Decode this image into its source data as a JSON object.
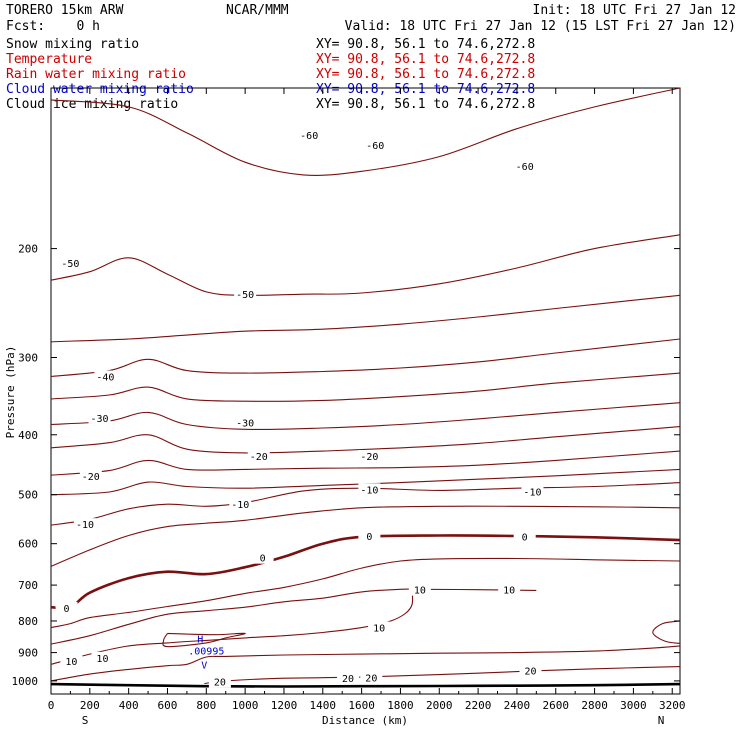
{
  "header": {
    "model": "TORERO  15km ARW",
    "center": "NCAR/MMM",
    "init": "Init: 18 UTC Fri 27 Jan 12",
    "fcst": "Fcst:    0 h",
    "valid": "Valid: 18 UTC Fri 27 Jan 12 (15 LST Fri 27 Jan 12)",
    "fields": [
      {
        "name": "Snow mixing ratio",
        "xy": "XY=  90.8, 56.1 to  74.6,272.8",
        "color": "#000000"
      },
      {
        "name": "Temperature",
        "xy": "XY=  90.8, 56.1 to  74.6,272.8",
        "color": "#cc0000"
      },
      {
        "name": "Rain water mixing ratio",
        "xy": "XY=  90.8, 56.1 to  74.6,272.8",
        "color": "#cc0000"
      },
      {
        "name": "Cloud water mixing ratio",
        "xy": "XY=  90.8, 56.1 to  74.6,272.8",
        "color": "#0000cc"
      },
      {
        "name": "Cloud ice mixing ratio",
        "xy": "XY=  90.8, 56.1 to  74.6,272.8",
        "color": "#000000"
      }
    ]
  },
  "colors": {
    "contour": "#7a1010",
    "zero_contour": "#7a1010",
    "ground": "#000000",
    "cloud_water": "#0000cc",
    "axis": "#000000"
  },
  "chart_data": {
    "type": "contour",
    "xlabel": "Distance (km)",
    "ylabel": "Pressure (hPa)",
    "x_ticks": [
      0,
      200,
      400,
      600,
      800,
      1000,
      1200,
      1400,
      1600,
      1800,
      2000,
      2200,
      2400,
      2600,
      2800,
      3000,
      3200
    ],
    "y_ticks": [
      200,
      300,
      400,
      500,
      600,
      700,
      800,
      900,
      1000
    ],
    "xlim": [
      0,
      3240
    ],
    "ylim": [
      1050,
      110
    ],
    "y_scale": "log",
    "x_end_labels": {
      "left": "S",
      "right": "N"
    },
    "temperature_contours": [
      {
        "level": -60,
        "points": [
          [
            0,
            115
          ],
          [
            400,
            118
          ],
          [
            700,
            130
          ],
          [
            1000,
            145
          ],
          [
            1300,
            152
          ],
          [
            1600,
            150
          ],
          [
            2000,
            142
          ],
          [
            2400,
            128
          ],
          [
            2800,
            118
          ],
          [
            3240,
            110
          ]
        ],
        "labels": [
          [
            1330,
            131,
            "-60"
          ],
          [
            1670,
            136,
            "-60"
          ],
          [
            2440,
            147,
            "-60"
          ]
        ]
      },
      {
        "level": -50,
        "points": [
          [
            0,
            225
          ],
          [
            200,
            218
          ],
          [
            400,
            207
          ],
          [
            600,
            220
          ],
          [
            800,
            235
          ],
          [
            1000,
            238
          ],
          [
            1300,
            237
          ],
          [
            1600,
            236
          ],
          [
            2000,
            228
          ],
          [
            2400,
            215
          ],
          [
            2800,
            200
          ],
          [
            3240,
            190
          ]
        ],
        "labels": [
          [
            100,
            211,
            "-50"
          ],
          [
            1000,
            237,
            "-50"
          ]
        ]
      },
      {
        "level": -45,
        "points": [
          [
            0,
            283
          ],
          [
            400,
            280
          ],
          [
            700,
            276
          ],
          [
            1000,
            272
          ],
          [
            1400,
            270
          ],
          [
            1800,
            265
          ],
          [
            2200,
            258
          ],
          [
            2600,
            250
          ],
          [
            3240,
            238
          ]
        ],
        "labels": []
      },
      {
        "level": -40,
        "points": [
          [
            0,
            322
          ],
          [
            300,
            315
          ],
          [
            500,
            302
          ],
          [
            700,
            315
          ],
          [
            1000,
            318
          ],
          [
            1400,
            316
          ],
          [
            1800,
            312
          ],
          [
            2200,
            305
          ],
          [
            2600,
            295
          ],
          [
            3240,
            280
          ]
        ],
        "labels": [
          [
            280,
            322,
            "-40"
          ]
        ]
      },
      {
        "level": -35,
        "points": [
          [
            0,
            350
          ],
          [
            300,
            345
          ],
          [
            500,
            335
          ],
          [
            700,
            350
          ],
          [
            1000,
            353
          ],
          [
            1400,
            352
          ],
          [
            1800,
            347
          ],
          [
            2200,
            340
          ],
          [
            2600,
            330
          ],
          [
            3240,
            318
          ]
        ],
        "labels": []
      },
      {
        "level": -30,
        "points": [
          [
            0,
            385
          ],
          [
            300,
            380
          ],
          [
            500,
            368
          ],
          [
            700,
            385
          ],
          [
            1000,
            392
          ],
          [
            1400,
            390
          ],
          [
            1800,
            385
          ],
          [
            2200,
            377
          ],
          [
            2600,
            368
          ],
          [
            3240,
            355
          ]
        ],
        "labels": [
          [
            250,
            376,
            "-30"
          ],
          [
            1000,
            382,
            "-30"
          ]
        ]
      },
      {
        "level": -25,
        "points": [
          [
            0,
            420
          ],
          [
            300,
            412
          ],
          [
            500,
            400
          ],
          [
            700,
            422
          ],
          [
            1000,
            428
          ],
          [
            1400,
            425
          ],
          [
            1800,
            420
          ],
          [
            2200,
            413
          ],
          [
            2600,
            403
          ],
          [
            3240,
            388
          ]
        ],
        "labels": []
      },
      {
        "level": -20,
        "points": [
          [
            0,
            465
          ],
          [
            300,
            457
          ],
          [
            500,
            440
          ],
          [
            700,
            455
          ],
          [
            1000,
            455
          ],
          [
            1400,
            453
          ],
          [
            1800,
            452
          ],
          [
            2200,
            448
          ],
          [
            2600,
            440
          ],
          [
            3240,
            425
          ]
        ],
        "labels": [
          [
            205,
            466,
            "-20"
          ],
          [
            1070,
            433,
            "-20"
          ],
          [
            1640,
            433,
            "-20"
          ]
        ]
      },
      {
        "level": -15,
        "points": [
          [
            0,
            500
          ],
          [
            300,
            495
          ],
          [
            500,
            477
          ],
          [
            700,
            485
          ],
          [
            1000,
            488
          ],
          [
            1400,
            483
          ],
          [
            1800,
            478
          ],
          [
            2200,
            472
          ],
          [
            2600,
            466
          ],
          [
            3240,
            455
          ]
        ],
        "labels": []
      },
      {
        "level": -10,
        "points": [
          [
            0,
            560
          ],
          [
            200,
            548
          ],
          [
            400,
            527
          ],
          [
            600,
            518
          ],
          [
            800,
            522
          ],
          [
            1000,
            515
          ],
          [
            1300,
            493
          ],
          [
            1600,
            488
          ],
          [
            2000,
            492
          ],
          [
            2400,
            488
          ],
          [
            2800,
            485
          ],
          [
            3240,
            478
          ]
        ],
        "labels": [
          [
            175,
            558,
            "-10"
          ],
          [
            975,
            518,
            "-10"
          ],
          [
            1640,
            490,
            "-10"
          ],
          [
            2480,
            494,
            "-10"
          ]
        ]
      },
      {
        "level": -5,
        "points": [
          [
            0,
            653
          ],
          [
            200,
            614
          ],
          [
            400,
            582
          ],
          [
            600,
            563
          ],
          [
            800,
            556
          ],
          [
            1000,
            550
          ],
          [
            1300,
            535
          ],
          [
            1600,
            525
          ],
          [
            2000,
            522
          ],
          [
            2400,
            522
          ],
          [
            2800,
            523
          ],
          [
            3240,
            525
          ]
        ],
        "labels": []
      },
      {
        "level": 0,
        "zero": true,
        "points": [
          [
            0,
            760
          ],
          [
            100,
            760
          ],
          [
            200,
            720
          ],
          [
            400,
            682
          ],
          [
            600,
            666
          ],
          [
            800,
            672
          ],
          [
            1000,
            655
          ],
          [
            1200,
            630
          ],
          [
            1400,
            600
          ],
          [
            1600,
            585
          ],
          [
            2000,
            582
          ],
          [
            2400,
            583
          ],
          [
            2800,
            586
          ],
          [
            3240,
            592
          ]
        ],
        "labels": [
          [
            80,
            762,
            "0"
          ],
          [
            1090,
            632,
            "0"
          ],
          [
            1640,
            583,
            "0"
          ],
          [
            2440,
            584,
            "0"
          ]
        ]
      },
      {
        "level": 5,
        "points": [
          [
            0,
            820
          ],
          [
            100,
            808
          ],
          [
            200,
            790
          ],
          [
            400,
            775
          ],
          [
            600,
            758
          ],
          [
            800,
            742
          ],
          [
            1000,
            722
          ],
          [
            1200,
            706
          ],
          [
            1400,
            684
          ],
          [
            1600,
            657
          ],
          [
            1800,
            640
          ],
          [
            2000,
            635
          ],
          [
            2400,
            634
          ],
          [
            2800,
            637
          ],
          [
            3240,
            640
          ]
        ],
        "labels": []
      },
      {
        "level": 10,
        "points": [
          [
            0,
            872
          ],
          [
            200,
            845
          ],
          [
            400,
            810
          ],
          [
            600,
            780
          ],
          [
            800,
            770
          ],
          [
            1000,
            760
          ],
          [
            1200,
            745
          ],
          [
            1400,
            735
          ],
          [
            1600,
            718
          ],
          [
            1800,
            711
          ],
          [
            1900,
            711
          ],
          [
            2200,
            712
          ],
          [
            2500,
            714
          ]
        ],
        "labels": [
          [
            1900,
            712,
            "10"
          ],
          [
            2360,
            712,
            "10"
          ]
        ]
      },
      {
        "level": 10,
        "points": [
          [
            1860,
            711
          ],
          [
            1860,
            752
          ],
          [
            1825,
            778
          ],
          [
            1750,
            800
          ],
          [
            1600,
            820
          ],
          [
            1400,
            835
          ],
          [
            1200,
            845
          ],
          [
            1000,
            852
          ],
          [
            800,
            860
          ],
          [
            600,
            868
          ],
          [
            400,
            878
          ],
          [
            200,
            905
          ],
          [
            0,
            940
          ]
        ],
        "labels": [
          [
            1690,
            820,
            "10"
          ],
          [
            105,
            928,
            "10"
          ],
          [
            265,
            918,
            "10"
          ]
        ]
      },
      {
        "level": 15,
        "points": [
          [
            0,
            1000
          ],
          [
            200,
            975
          ],
          [
            400,
            958
          ],
          [
            600,
            945
          ],
          [
            700,
            940
          ],
          [
            800,
            915
          ],
          [
            900,
            913
          ],
          [
            1200,
            908
          ],
          [
            1600,
            905
          ],
          [
            2000,
            902
          ],
          [
            2400,
            900
          ],
          [
            2800,
            895
          ],
          [
            3100,
            885
          ],
          [
            3240,
            878
          ]
        ],
        "labels": []
      },
      {
        "level": 15,
        "points": [
          [
            3240,
            800
          ],
          [
            3150,
            808
          ],
          [
            3100,
            835
          ],
          [
            3160,
            862
          ],
          [
            3240,
            870
          ]
        ],
        "labels": []
      },
      {
        "level": 20,
        "points": [
          [
            790,
            1010
          ],
          [
            900,
            1000
          ],
          [
            1200,
            990
          ],
          [
            1600,
            986
          ],
          [
            2000,
            977
          ],
          [
            2400,
            966
          ],
          [
            2800,
            956
          ],
          [
            3240,
            948
          ]
        ],
        "labels": [
          [
            870,
            1003,
            "20"
          ],
          [
            1530,
            990,
            "20"
          ],
          [
            1650,
            987,
            "20"
          ],
          [
            2470,
            962,
            "20"
          ]
        ]
      }
    ],
    "enclosed_region": {
      "points": [
        [
          600,
          838
        ],
        [
          580,
          860
        ],
        [
          600,
          880
        ],
        [
          800,
          868
        ],
        [
          900,
          852
        ],
        [
          1000,
          838
        ],
        [
          850,
          842
        ],
        [
          700,
          840
        ],
        [
          600,
          838
        ]
      ]
    },
    "ground_line": {
      "points": [
        [
          0,
          1012
        ],
        [
          400,
          1016
        ],
        [
          800,
          1020
        ],
        [
          1200,
          1021
        ],
        [
          1600,
          1020
        ],
        [
          2000,
          1019
        ],
        [
          2400,
          1018
        ],
        [
          2800,
          1016
        ],
        [
          3240,
          1012
        ]
      ]
    },
    "cloud_water_marker": {
      "label": "H",
      "value": ".00995",
      "bottom": "V",
      "x": 800,
      "y": 880
    }
  }
}
